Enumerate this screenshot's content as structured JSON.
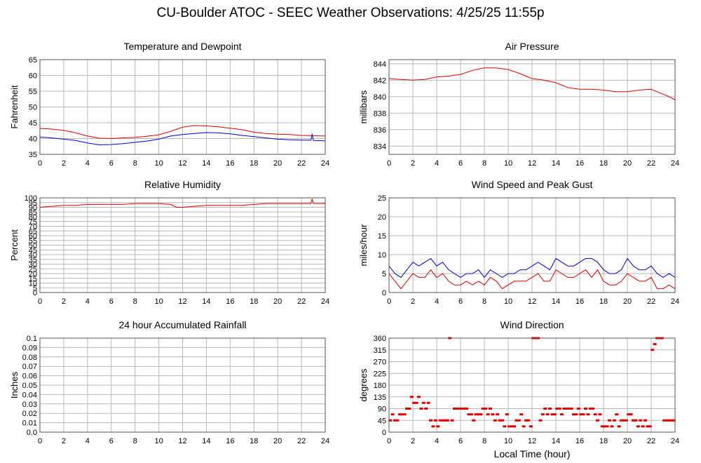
{
  "page": {
    "title": "CU-Boulder ATOC - SEEC Weather Observations: 4/25/25 11:55p",
    "xlabel": "Local Time (hour)"
  },
  "colors": {
    "red": "#e00000",
    "blue": "#0000dd",
    "grid": "#b8b8b8",
    "frame": "#555555"
  },
  "chart_data": [
    {
      "id": "temperature",
      "type": "line",
      "title": "Temperature and Dewpoint",
      "xlabel": "",
      "ylabel": "Fahrenheit",
      "xlim": [
        0,
        24
      ],
      "ylim": [
        35,
        65
      ],
      "xticks": [
        0,
        2,
        4,
        6,
        8,
        10,
        12,
        14,
        16,
        18,
        20,
        22,
        24
      ],
      "yticks": [
        35,
        40,
        45,
        50,
        55,
        60,
        65
      ],
      "grid": true,
      "series": [
        {
          "color": "#e00000",
          "x": [
            0,
            1,
            2,
            3,
            4,
            5,
            6,
            7,
            8,
            9,
            10,
            11,
            12,
            13,
            14,
            15,
            16,
            17,
            18,
            19,
            20,
            21,
            22,
            23,
            24
          ],
          "y": [
            43.2,
            43.0,
            42.6,
            41.8,
            40.8,
            40.1,
            40.0,
            40.2,
            40.4,
            40.7,
            41.2,
            42.3,
            43.6,
            44.1,
            44.0,
            43.7,
            43.3,
            42.8,
            42.0,
            41.6,
            41.4,
            41.3,
            41.0,
            40.9,
            40.8
          ]
        },
        {
          "color": "#0000dd",
          "x": [
            0,
            1,
            2,
            3,
            4,
            5,
            6,
            7,
            8,
            9,
            10,
            11,
            12,
            13,
            14,
            15,
            16,
            17,
            18,
            19,
            20,
            21,
            22,
            22.8,
            22.9,
            23,
            24
          ],
          "y": [
            40.5,
            40.2,
            39.8,
            39.4,
            38.6,
            38.0,
            38.1,
            38.4,
            38.8,
            39.2,
            39.8,
            40.8,
            41.3,
            41.6,
            41.9,
            41.8,
            41.5,
            41.0,
            40.6,
            40.2,
            39.8,
            39.6,
            39.5,
            39.5,
            41.5,
            39.4,
            39.3
          ]
        }
      ]
    },
    {
      "id": "pressure",
      "type": "line",
      "title": "Air Pressure",
      "xlabel": "",
      "ylabel": "millibars",
      "xlim": [
        0,
        24
      ],
      "ylim": [
        833,
        844.5
      ],
      "xticks": [
        0,
        2,
        4,
        6,
        8,
        10,
        12,
        14,
        16,
        18,
        20,
        22,
        24
      ],
      "yticks": [
        834,
        836,
        838,
        840,
        842,
        844
      ],
      "grid": true,
      "series": [
        {
          "color": "#e00000",
          "x": [
            0,
            1,
            2,
            3,
            4,
            5,
            6,
            7,
            8,
            9,
            10,
            11,
            12,
            13,
            14,
            15,
            16,
            17,
            18,
            19,
            20,
            21,
            22,
            22.5,
            23,
            23.5,
            24
          ],
          "y": [
            842.2,
            842.1,
            842.0,
            842.1,
            842.4,
            842.5,
            842.7,
            843.2,
            843.5,
            843.5,
            843.3,
            842.8,
            842.2,
            842.0,
            841.7,
            841.1,
            840.9,
            840.9,
            840.8,
            840.6,
            840.6,
            840.8,
            840.9,
            840.6,
            840.3,
            840.0,
            839.6
          ]
        }
      ]
    },
    {
      "id": "humidity",
      "type": "line",
      "title": "Relative Humidity",
      "xlabel": "",
      "ylabel": "Percent",
      "xlim": [
        0,
        24
      ],
      "ylim": [
        0,
        100
      ],
      "xticks": [
        0,
        2,
        4,
        6,
        8,
        10,
        12,
        14,
        16,
        18,
        20,
        22,
        24
      ],
      "yticks": [
        0,
        5,
        10,
        15,
        20,
        25,
        30,
        35,
        40,
        45,
        50,
        55,
        60,
        65,
        70,
        75,
        80,
        85,
        90,
        95,
        100
      ],
      "grid": true,
      "series": [
        {
          "color": "#e00000",
          "x": [
            0,
            1,
            2,
            3,
            4,
            5,
            6,
            7,
            8,
            9,
            10,
            11,
            11.5,
            12,
            13,
            14,
            15,
            16,
            17,
            18,
            19,
            20,
            21,
            22,
            22.8,
            22.9,
            23,
            24
          ],
          "y": [
            90,
            91,
            92,
            92,
            93,
            93,
            93,
            93,
            94,
            94,
            94,
            93,
            90,
            90,
            91,
            92,
            92,
            92,
            92,
            93,
            94,
            94,
            94,
            94,
            94,
            99,
            94,
            94
          ]
        }
      ]
    },
    {
      "id": "wind",
      "type": "line",
      "title": "Wind Speed and Peak Gust",
      "xlabel": "",
      "ylabel": "miles/hour",
      "xlim": [
        0,
        24
      ],
      "ylim": [
        0,
        25
      ],
      "xticks": [
        0,
        2,
        4,
        6,
        8,
        10,
        12,
        14,
        16,
        18,
        20,
        22,
        24
      ],
      "yticks": [
        0,
        5,
        10,
        15,
        20,
        25
      ],
      "grid": true,
      "series": [
        {
          "color": "#0000dd",
          "x": [
            0,
            0.5,
            1,
            1.5,
            2,
            2.5,
            3,
            3.5,
            4,
            4.5,
            5,
            5.5,
            6,
            6.5,
            7,
            7.5,
            8,
            8.5,
            9,
            9.5,
            10,
            10.5,
            11,
            11.5,
            12,
            12.5,
            13,
            13.5,
            14,
            14.5,
            15,
            15.5,
            16,
            16.5,
            17,
            17.5,
            18,
            18.5,
            19,
            19.5,
            20,
            20.5,
            21,
            21.5,
            22,
            22.5,
            23,
            23.5,
            24
          ],
          "y": [
            7,
            5,
            4,
            6,
            8,
            7,
            8,
            9,
            7,
            8,
            6,
            5,
            4,
            5,
            5,
            6,
            4,
            6,
            5,
            4,
            5,
            5,
            6,
            6,
            7,
            8,
            7,
            6,
            9,
            8,
            7,
            7,
            8,
            9,
            9,
            8,
            6,
            5,
            5,
            6,
            9,
            7,
            6,
            6,
            7,
            5,
            4,
            5,
            4
          ]
        },
        {
          "color": "#e00000",
          "x": [
            0,
            0.5,
            1,
            1.5,
            2,
            2.5,
            3,
            3.5,
            4,
            4.5,
            5,
            5.5,
            6,
            6.5,
            7,
            7.5,
            8,
            8.5,
            9,
            9.5,
            10,
            10.5,
            11,
            11.5,
            12,
            12.5,
            13,
            13.5,
            14,
            14.5,
            15,
            15.5,
            16,
            16.5,
            17,
            17.5,
            18,
            18.5,
            19,
            19.5,
            20,
            20.5,
            21,
            21.5,
            22,
            22.5,
            23,
            23.5,
            24
          ],
          "y": [
            5,
            3,
            1,
            3,
            5,
            4,
            4,
            6,
            4,
            5,
            3,
            2,
            2,
            3,
            2,
            3,
            2,
            4,
            3,
            1,
            2,
            3,
            3,
            3,
            4,
            5,
            3,
            3,
            6,
            5,
            4,
            4,
            5,
            6,
            4,
            6,
            3,
            2,
            2,
            3,
            5,
            4,
            3,
            3,
            4,
            1,
            1,
            2,
            1
          ]
        }
      ]
    },
    {
      "id": "rain",
      "type": "line",
      "title": "24 hour Accumulated Rainfall",
      "xlabel": "",
      "ylabel": "Inches",
      "xlim": [
        0,
        24
      ],
      "ylim": [
        0,
        0.1
      ],
      "xticks": [
        0,
        2,
        4,
        6,
        8,
        10,
        12,
        14,
        16,
        18,
        20,
        22,
        24
      ],
      "yticks": [
        0.0,
        0.01,
        0.02,
        0.03,
        0.04,
        0.05,
        0.06,
        0.07,
        0.08,
        0.09,
        0.1
      ],
      "ytick_labels": [
        "0.0",
        "0.01",
        "0.02",
        "0.03",
        "0.04",
        "0.05",
        "0.06",
        "0.07",
        "0.08",
        "0.09",
        "0.1"
      ],
      "grid": true,
      "series": [
        {
          "color": "#e00000",
          "x": [
            0,
            24
          ],
          "y": [
            0,
            0
          ]
        }
      ]
    },
    {
      "id": "direction",
      "type": "scatter",
      "title": "Wind Direction",
      "xlabel": "Local Time (hour)",
      "ylabel": "degrees",
      "xlim": [
        0,
        24
      ],
      "ylim": [
        0,
        360
      ],
      "xticks": [
        0,
        2,
        4,
        6,
        8,
        10,
        12,
        14,
        16,
        18,
        20,
        22,
        24
      ],
      "yticks": [
        0,
        45,
        90,
        135,
        180,
        225,
        270,
        315,
        360
      ],
      "grid": true,
      "series": [
        {
          "color": "#e00000",
          "x": [
            0.1,
            0.3,
            0.5,
            0.7,
            0.9,
            1.1,
            1.3,
            1.5,
            1.7,
            1.9,
            2.1,
            2.3,
            2.5,
            2.7,
            2.9,
            3.1,
            3.3,
            3.5,
            3.7,
            3.9,
            4.1,
            4.3,
            4.5,
            4.7,
            4.9,
            5.1,
            5.3,
            5.5,
            5.7,
            5.9,
            6.1,
            6.3,
            6.5,
            6.7,
            6.9,
            7.1,
            7.3,
            7.5,
            7.7,
            7.9,
            8.1,
            8.3,
            8.5,
            8.7,
            8.9,
            9.1,
            9.3,
            9.5,
            9.7,
            9.9,
            10.1,
            10.3,
            10.5,
            10.7,
            10.9,
            11.1,
            11.3,
            11.5,
            11.7,
            11.9,
            12.1,
            12.3,
            12.5,
            12.7,
            12.9,
            13.1,
            13.3,
            13.5,
            13.7,
            13.9,
            14.1,
            14.3,
            14.5,
            14.7,
            14.9,
            15.1,
            15.3,
            15.5,
            15.7,
            15.9,
            16.1,
            16.3,
            16.5,
            16.7,
            16.9,
            17.1,
            17.3,
            17.5,
            17.7,
            17.9,
            18.1,
            18.3,
            18.5,
            18.7,
            18.9,
            19.1,
            19.3,
            19.5,
            19.7,
            19.9,
            20.1,
            20.3,
            20.5,
            20.7,
            20.9,
            21.1,
            21.3,
            21.5,
            21.7,
            21.9,
            22.1,
            22.3,
            22.5,
            22.7,
            22.9,
            23.1,
            23.3,
            23.5,
            23.7,
            23.9
          ],
          "y": [
            45,
            68,
            45,
            45,
            68,
            68,
            68,
            90,
            90,
            135,
            112,
            112,
            135,
            90,
            112,
            90,
            112,
            45,
            22,
            45,
            22,
            45,
            45,
            45,
            45,
            360,
            45,
            90,
            90,
            90,
            90,
            90,
            90,
            68,
            68,
            45,
            68,
            68,
            68,
            90,
            90,
            68,
            90,
            68,
            45,
            68,
            45,
            45,
            22,
            68,
            22,
            22,
            22,
            45,
            45,
            68,
            22,
            45,
            45,
            22,
            360,
            360,
            360,
            45,
            68,
            90,
            68,
            90,
            68,
            68,
            90,
            90,
            68,
            90,
            90,
            90,
            90,
            68,
            68,
            90,
            68,
            68,
            90,
            68,
            90,
            90,
            68,
            45,
            68,
            22,
            22,
            22,
            45,
            22,
            45,
            68,
            22,
            45,
            45,
            45,
            68,
            68,
            45,
            45,
            22,
            45,
            22,
            45,
            22,
            22,
            315,
            337,
            360,
            360,
            360,
            45,
            45,
            45,
            45,
            45
          ]
        }
      ]
    }
  ]
}
